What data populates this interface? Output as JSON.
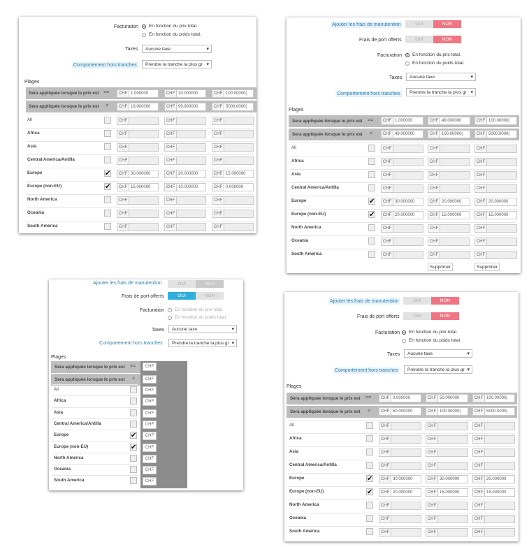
{
  "labels": {
    "handling": "Ajouter les frais de manutention",
    "free": "Frais de port offerts",
    "billing": "Facturation",
    "billing_price": "En fonction du prix total.",
    "billing_weight": "En fonction du poids total.",
    "taxes": "Taxes",
    "taxes_value": "Aucune taxe",
    "out_range": "Comportement hors tranches",
    "out_range_value": "Prendre la tranche la plus gr",
    "ranges": "Plages",
    "applied_ge": "Sera appliquée lorsque le prix est",
    "op_ge": ">=",
    "op_lt": "<",
    "currency": "CHF",
    "yes": "OUI",
    "no": "NON",
    "delete": "Supprimer"
  },
  "zones": [
    "All",
    "Africa",
    "Asia",
    "Central America/Antilla",
    "Europe",
    "Europe (non-EU)",
    "North America",
    "Oceania",
    "South America"
  ],
  "panel_tl": {
    "ge": [
      "1.000000",
      "20.000000",
      "100.00000("
    ],
    "lt": [
      "19.900000",
      "99.900000",
      "5000.0000("
    ],
    "europe": [
      "30.000000",
      "20.000000",
      "15.000000"
    ],
    "europe_non_eu": [
      "15.000000",
      "10.000000",
      "0.000000"
    ]
  },
  "panel_tr": {
    "ge": [
      "1.000000",
      "49.000000",
      "100.00000("
    ],
    "lt": [
      "49.000000",
      "100.00000(",
      "5000.0000("
    ],
    "europe": [
      "30.000000",
      "20.000000",
      "20.000000"
    ],
    "europe_non_eu": [
      "20.000000",
      "15.000000",
      "15.000000"
    ]
  },
  "panel_br": {
    "ge": [
      "0.000000",
      "50.000000",
      "100.00000("
    ],
    "lt": [
      "50.000000",
      "100.00000(",
      "5000.0000("
    ],
    "europe": [
      "30.000000",
      "30.000000",
      "20.000000"
    ],
    "europe_non_eu": [
      "20.000000",
      "15.000000",
      "15.000000"
    ]
  },
  "colors": {
    "toggle_no": "#f07582",
    "toggle_yes": "#2faedb",
    "link": "#2a7ab0",
    "header": "#bdbdbd"
  }
}
